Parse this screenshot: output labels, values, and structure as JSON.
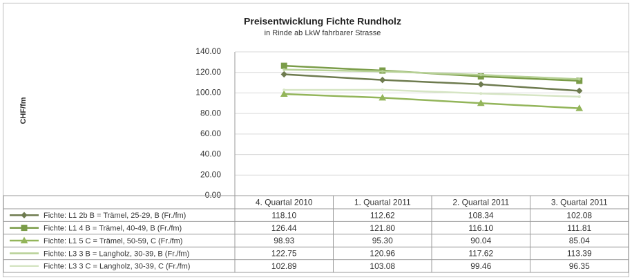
{
  "chart_data": {
    "type": "line",
    "title": "Preisentwicklung Fichte Rundholz",
    "subtitle": "in Rinde ab LkW fahrbarer Strasse",
    "ylabel": "CHF/fm",
    "categories": [
      "4. Quartal 2010",
      "1. Quartal 2011",
      "2. Quartal 2011",
      "3. Quartal 2011"
    ],
    "ylim": [
      0,
      140
    ],
    "yticks": [
      {
        "value": 0,
        "label": "0.00"
      },
      {
        "value": 20,
        "label": "20.00"
      },
      {
        "value": 40,
        "label": "40.00"
      },
      {
        "value": 60,
        "label": "60.00"
      },
      {
        "value": 80,
        "label": "80.00"
      },
      {
        "value": 100,
        "label": "100.00"
      },
      {
        "value": 120,
        "label": "120.00"
      },
      {
        "value": 140,
        "label": "140.00"
      }
    ],
    "grid": true,
    "series": [
      {
        "name": "Fichte: L1 2b B = Trämel, 25-29, B (Fr./fm)",
        "color": "#6e7b4f",
        "marker": "diamond",
        "values": [
          118.1,
          112.62,
          108.34,
          102.08
        ],
        "value_labels": [
          "118.10",
          "112.62",
          "108.34",
          "102.08"
        ]
      },
      {
        "name": "Fichte: L1 4 B = Trämel, 40-49, B (Fr./fm)",
        "color": "#7a9c48",
        "marker": "square",
        "values": [
          126.44,
          121.8,
          116.1,
          111.81
        ],
        "value_labels": [
          "126.44",
          "121.80",
          "116.10",
          "111.81"
        ]
      },
      {
        "name": "Fichte: L1 5 C = Trämel, 50-59, C (Fr./fm)",
        "color": "#93b55a",
        "marker": "triangle",
        "values": [
          98.93,
          95.3,
          90.04,
          85.04
        ],
        "value_labels": [
          "98.93",
          "95.30",
          "90.04",
          "85.04"
        ]
      },
      {
        "name": "Fichte: L3 3 B = Langholz, 30-39, B (Fr./fm)",
        "color": "#b7d196",
        "marker": "none",
        "values": [
          122.75,
          120.96,
          117.62,
          113.39
        ],
        "value_labels": [
          "122.75",
          "120.96",
          "117.62",
          "113.39"
        ]
      },
      {
        "name": "Fichte: L3 3 C = Langholz, 30-39, C (Fr./fm)",
        "color": "#d6e5c4",
        "marker": "none",
        "values": [
          102.89,
          103.08,
          99.46,
          96.35
        ],
        "value_labels": [
          "102.89",
          "103.08",
          "99.46",
          "96.35"
        ]
      }
    ]
  }
}
